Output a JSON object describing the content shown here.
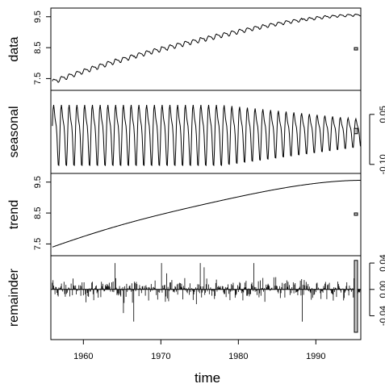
{
  "chart_data": {
    "type": "line",
    "xlabel": "time",
    "xlim": [
      1955.8,
      1995.8
    ],
    "xticks": [
      1960,
      1970,
      1980,
      1990
    ],
    "panels": [
      {
        "name": "data",
        "ylabel": "data",
        "ylim": [
          7.25,
          9.65
        ],
        "yticks": [
          "7.5",
          "8.5",
          "9.5"
        ],
        "ytick_values": [
          7.5,
          8.5,
          9.5
        ],
        "axis_side": "left",
        "series": {
          "start": 1956,
          "end": 1995.75,
          "trend_start": 7.35,
          "trend_end": 9.55,
          "seasonal_amplitude": 0.08
        }
      },
      {
        "name": "seasonal",
        "ylabel": "seasonal",
        "ylim": [
          -0.115,
          0.11
        ],
        "yticks": [
          "-0.10",
          "0.05"
        ],
        "ytick_values": [
          -0.1,
          0.05
        ],
        "axis_side": "right",
        "series": {
          "start": 1956,
          "end": 1995.75,
          "peak": 0.1,
          "trough": -0.11,
          "late_peak": 0.04,
          "late_trough": -0.065
        }
      },
      {
        "name": "trend",
        "ylabel": "trend",
        "ylim": [
          7.25,
          9.65
        ],
        "yticks": [
          "7.5",
          "8.5",
          "9.5"
        ],
        "ytick_values": [
          7.5,
          8.5,
          9.5
        ],
        "axis_side": "left",
        "series": {
          "start": 1956,
          "end": 1995.75,
          "y_start": 7.4,
          "y_end": 9.55
        }
      },
      {
        "name": "remainder",
        "ylabel": "remainder",
        "ylim": [
          -0.07,
          0.045
        ],
        "yticks": [
          "-0.04",
          "0.00",
          "0.04"
        ],
        "ytick_values": [
          -0.04,
          0.0,
          0.04
        ],
        "axis_side": "right",
        "series": {
          "start": 1956,
          "end": 1995.75,
          "max": 0.04,
          "min": -0.065
        }
      }
    ],
    "range_bars": [
      {
        "panel": "data",
        "range": 0.0055
      },
      {
        "panel": "seasonal",
        "range": 0.016
      },
      {
        "panel": "trend",
        "range": 0.0055
      },
      {
        "panel": "remainder",
        "range": 0.109
      }
    ]
  }
}
